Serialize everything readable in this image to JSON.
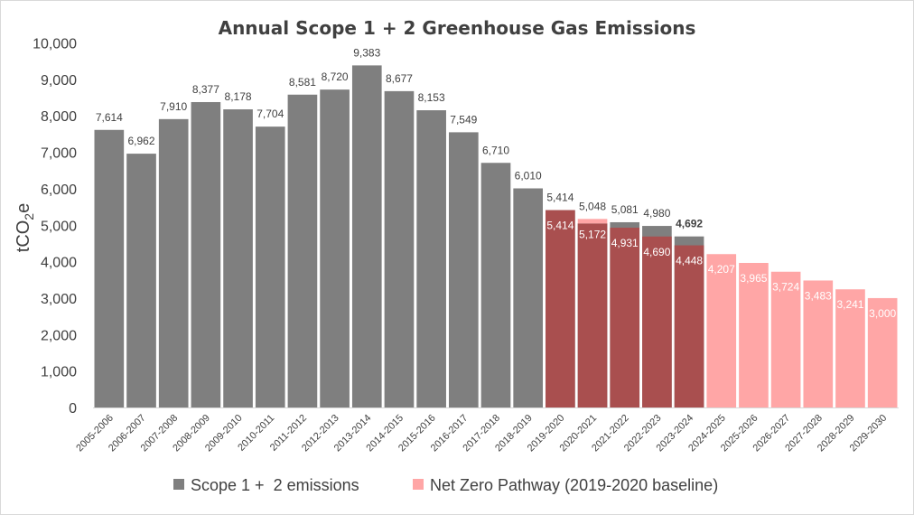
{
  "chart_data": {
    "type": "bar",
    "title": "Annual Scope 1 + 2 Greenhouse Gas Emissions",
    "ylabel": {
      "base": "tCO",
      "sub": "2",
      "suffix": "e"
    },
    "xlabel": "",
    "ylim": [
      0,
      10000
    ],
    "yticks": [
      0,
      1000,
      2000,
      3000,
      4000,
      5000,
      6000,
      7000,
      8000,
      9000,
      10000
    ],
    "ytick_labels": [
      "0",
      "1,000",
      "2,000",
      "3,000",
      "4,000",
      "5,000",
      "6,000",
      "7,000",
      "8,000",
      "9,000",
      "10,000"
    ],
    "categories": [
      "2005-2006",
      "2006-2007",
      "2007-2008",
      "2008-2009",
      "2009-2010",
      "2010-2011",
      "2011-2012",
      "2012-2013",
      "2013-2014",
      "2014-2015",
      "2015-2016",
      "2016-2017",
      "2017-2018",
      "2018-2019",
      "2019-2020",
      "2020-2021",
      "2021-2022",
      "2022-2023",
      "2023-2024",
      "2024-2025",
      "2025-2026",
      "2026-2027",
      "2027-2028",
      "2028-2029",
      "2029-2030"
    ],
    "series": [
      {
        "name": "Scope 1 +  2 emissions",
        "color": "#7f7f7f",
        "values": [
          7614,
          6962,
          7910,
          8377,
          8178,
          7704,
          8581,
          8720,
          9383,
          8677,
          8153,
          7549,
          6710,
          6010,
          5414,
          5048,
          5081,
          4980,
          4692,
          null,
          null,
          null,
          null,
          null,
          null
        ],
        "labels": [
          "7,614",
          "6,962",
          "7,910",
          "8,377",
          "8,178",
          "7,704",
          "8,581",
          "8,720",
          "9,383",
          "8,677",
          "8,153",
          "7,549",
          "6,710",
          "6,010",
          "5,414",
          "5,048",
          "5,081",
          "4,980",
          "4,692",
          null,
          null,
          null,
          null,
          null,
          null
        ],
        "bold_last_label": true
      },
      {
        "name": "Net Zero Pathway (2019-2020 baseline)",
        "color": "#ffa6a6",
        "overlap_color": "#a94f4f",
        "values": [
          null,
          null,
          null,
          null,
          null,
          null,
          null,
          null,
          null,
          null,
          null,
          null,
          null,
          null,
          5414,
          5172,
          4931,
          4690,
          4448,
          4207,
          3965,
          3724,
          3483,
          3241,
          3000
        ],
        "labels": [
          null,
          null,
          null,
          null,
          null,
          null,
          null,
          null,
          null,
          null,
          null,
          null,
          null,
          null,
          "5,414",
          "5,172",
          "4,931",
          "4,690",
          "4,448",
          "4,207",
          "3,965",
          "3,724",
          "3,483",
          "3,241",
          "3,000"
        ]
      }
    ],
    "legend_position": "bottom",
    "grid": false
  }
}
